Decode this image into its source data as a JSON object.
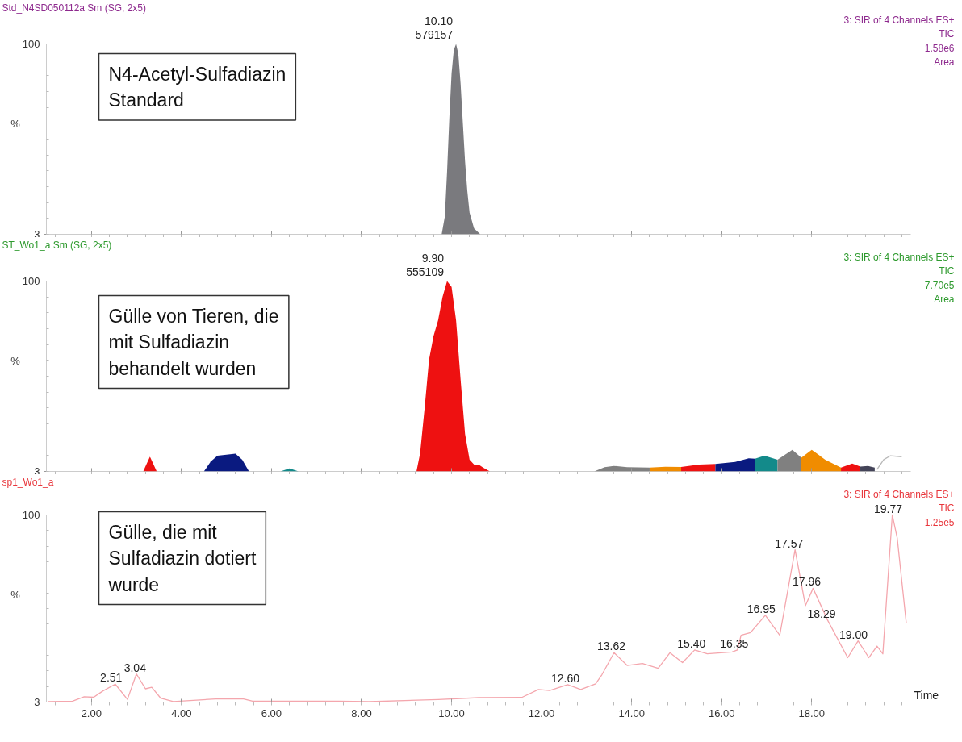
{
  "chart_data": [
    {
      "type": "area",
      "title": "Std_N4SD050112a Sm (SG, 2x5)",
      "ylabel": "%",
      "xlim": [
        1.0,
        20.2
      ],
      "xticks": [
        {
          "value": 2,
          "label": null
        },
        {
          "value": 4,
          "label": null
        },
        {
          "value": 6,
          "label": null
        },
        {
          "value": 8,
          "label": null
        },
        {
          "value": 10,
          "label": null
        },
        {
          "value": 12,
          "label": null
        },
        {
          "value": 14,
          "label": null
        },
        {
          "value": 16,
          "label": null
        },
        {
          "value": 18,
          "label": null
        }
      ],
      "ylim": [
        3,
        100
      ],
      "yticks": [
        3,
        100
      ],
      "tick_labels": "y",
      "grid": false,
      "annotations": [
        "3: SIR of 4 Channels ES+\nTIC\n1.58e6\nArea",
        "N4-Acetyl-Sulfadiazin\nStandard",
        {
          "text": "10.10\n579157",
          "x": 10.1,
          "y": 100
        }
      ],
      "series": [
        {
          "color": "#7a7a7e",
          "x": [
            9.78,
            9.85,
            9.9,
            9.95,
            10.0,
            10.05,
            10.1,
            10.15,
            10.2,
            10.25,
            10.3,
            10.35,
            10.4,
            10.5,
            10.64
          ],
          "values": [
            3,
            12,
            35,
            62,
            85,
            97,
            100,
            95,
            80,
            60,
            40,
            25,
            14,
            6,
            3
          ]
        }
      ]
    },
    {
      "type": "area",
      "title": "ST_Wo1_a Sm (SG, 2x5)",
      "ylabel": "%",
      "xlim": [
        1.0,
        20.2
      ],
      "xticks": [
        {
          "value": 2,
          "label": null
        },
        {
          "value": 4,
          "label": null
        },
        {
          "value": 6,
          "label": null
        },
        {
          "value": 8,
          "label": null
        },
        {
          "value": 10,
          "label": null
        },
        {
          "value": 12,
          "label": null
        },
        {
          "value": 14,
          "label": null
        },
        {
          "value": 16,
          "label": null
        },
        {
          "value": 18,
          "label": null
        }
      ],
      "ylim": [
        3,
        100
      ],
      "yticks": [
        3,
        100
      ],
      "tick_labels": "y",
      "grid": false,
      "annotations": [
        "3: SIR of 4 Channels ES+\nTIC\n7.70e5\nArea",
        "Gülle von Tieren, die\nmit Sulfadiazin\nbehandelt wurden",
        {
          "text": "9.90\n555109",
          "x": 9.9,
          "y": 100
        }
      ],
      "series": [
        {
          "color": "#ee1111",
          "x": [
            3.15,
            3.25,
            3.3,
            3.35,
            3.45
          ],
          "values": [
            3,
            8,
            10.5,
            8,
            3
          ]
        },
        {
          "color": "#0a1a80",
          "x": [
            4.5,
            4.65,
            4.8,
            5.0,
            5.2,
            5.35,
            5.5
          ],
          "values": [
            3,
            8,
            11,
            11.5,
            12,
            9,
            3
          ]
        },
        {
          "color": "#138a8a",
          "x": [
            6.2,
            6.4,
            6.6
          ],
          "values": [
            3,
            4.5,
            3
          ]
        },
        {
          "color": "#ee1111",
          "x": [
            9.22,
            9.3,
            9.4,
            9.5,
            9.6,
            9.7,
            9.8,
            9.9,
            10.0,
            10.1,
            10.2,
            10.3,
            10.4,
            10.5,
            10.6,
            10.7,
            10.85
          ],
          "values": [
            3,
            12,
            35,
            60,
            72,
            80,
            92,
            100,
            97,
            80,
            50,
            22,
            9,
            6.5,
            6.5,
            5,
            3
          ]
        },
        {
          "color": "#808080",
          "x": [
            13.17,
            13.4,
            13.6,
            13.9,
            14.4
          ],
          "values": [
            3,
            5.2,
            5.8,
            5.2,
            5
          ]
        },
        {
          "color": "#f08c00",
          "x": [
            14.4,
            14.75,
            15.1
          ],
          "values": [
            5,
            5.4,
            5.3
          ]
        },
        {
          "color": "#ee1111",
          "x": [
            15.1,
            15.5,
            15.86
          ],
          "values": [
            5.3,
            6.5,
            6.8
          ]
        },
        {
          "color": "#0a1a80",
          "x": [
            15.86,
            16.3,
            16.6,
            16.74
          ],
          "values": [
            6.8,
            7.8,
            9.7,
            9.5
          ]
        },
        {
          "color": "#138a8a",
          "x": [
            16.74,
            16.95,
            17.24
          ],
          "values": [
            9.5,
            11,
            9
          ]
        },
        {
          "color": "#808080",
          "x": [
            17.24,
            17.57,
            17.77
          ],
          "values": [
            9,
            14,
            10
          ]
        },
        {
          "color": "#f08c00",
          "x": [
            17.77,
            18.0,
            18.3,
            18.65
          ],
          "values": [
            10,
            14,
            9,
            5
          ]
        },
        {
          "color": "#ee1111",
          "x": [
            18.65,
            18.9,
            19.08
          ],
          "values": [
            5,
            7,
            5.5
          ]
        },
        {
          "color": "#444458",
          "x": [
            19.08,
            19.25,
            19.4
          ],
          "values": [
            5.5,
            5.8,
            5
          ]
        },
        {
          "type": "line",
          "color": "#b8b8b8",
          "x": [
            19.45,
            19.6,
            19.75,
            20.0
          ],
          "values": [
            4,
            9,
            11,
            10.5
          ]
        }
      ]
    },
    {
      "type": "line",
      "title": "sp1_Wo1_a",
      "xlabel": "Time",
      "ylabel": "%",
      "xlim": [
        1.0,
        20.2
      ],
      "xticks": [
        {
          "value": 2,
          "label": "2.00"
        },
        {
          "value": 4,
          "label": "4.00"
        },
        {
          "value": 6,
          "label": "6.00"
        },
        {
          "value": 8,
          "label": "8.00"
        },
        {
          "value": 10,
          "label": "10.00"
        },
        {
          "value": 12,
          "label": "12.00"
        },
        {
          "value": 14,
          "label": "14.00"
        },
        {
          "value": 16,
          "label": "16.00"
        },
        {
          "value": 18,
          "label": "18.00"
        }
      ],
      "ylim": [
        3,
        100
      ],
      "yticks": [
        3,
        100
      ],
      "grid": false,
      "annotations": [
        "3: SIR of 4 Channels ES+\nTIC\n1.25e5",
        "Gülle, die mit\nSulfadiazin dotiert\nwurde",
        {
          "text": "2.51",
          "x": 2.51,
          "y": 12.3
        },
        {
          "text": "3.04",
          "x": 3.04,
          "y": 17.6
        },
        {
          "text": "12.60",
          "x": 12.6,
          "y": 12
        },
        {
          "text": "13.62",
          "x": 13.62,
          "y": 28.6
        },
        {
          "text": "15.40",
          "x": 15.4,
          "y": 30
        },
        {
          "text": "16.35",
          "x": 16.35,
          "y": 30
        },
        {
          "text": "16.95",
          "x": 16.95,
          "y": 48
        },
        {
          "text": "17.57",
          "x": 17.57,
          "y": 82
        },
        {
          "text": "17.96",
          "x": 17.96,
          "y": 62
        },
        {
          "text": "18.29",
          "x": 18.29,
          "y": 45.6
        },
        {
          "text": "19.00",
          "x": 19.0,
          "y": 34.7
        },
        {
          "text": "19.77",
          "x": 19.77,
          "y": 100
        }
      ],
      "series": [
        {
          "color": "#f4a6ad",
          "x": [
            1.04,
            1.58,
            1.84,
            2.05,
            2.25,
            2.53,
            2.8,
            3.0,
            3.2,
            3.34,
            3.54,
            3.82,
            4.76,
            5.38,
            5.58,
            7.5,
            8.16,
            9.7,
            10.6,
            11.56,
            11.93,
            12.18,
            12.58,
            12.87,
            13.2,
            13.34,
            13.61,
            13.9,
            14.24,
            14.59,
            14.85,
            15.13,
            15.4,
            15.68,
            16.23,
            16.35,
            16.43,
            16.64,
            16.97,
            17.29,
            17.63,
            17.86,
            18.03,
            18.35,
            18.8,
            19.03,
            19.27,
            19.45,
            19.58,
            19.79,
            19.9,
            20.1
          ],
          "values": [
            3.2,
            3.5,
            5.8,
            5.5,
            8.7,
            12.3,
            4.4,
            17.6,
            9.9,
            10.7,
            5,
            3.3,
            4.6,
            4.6,
            3.5,
            3.5,
            3.2,
            4.3,
            5.3,
            5.4,
            9.5,
            9,
            12,
            9.5,
            12.5,
            17.2,
            28.6,
            22,
            23,
            20.5,
            28.6,
            23.5,
            30,
            28,
            29,
            30,
            37.6,
            39,
            48,
            37.6,
            82,
            53,
            62,
            45.6,
            26,
            34.7,
            26,
            32,
            28,
            100,
            88,
            44
          ]
        }
      ]
    }
  ]
}
